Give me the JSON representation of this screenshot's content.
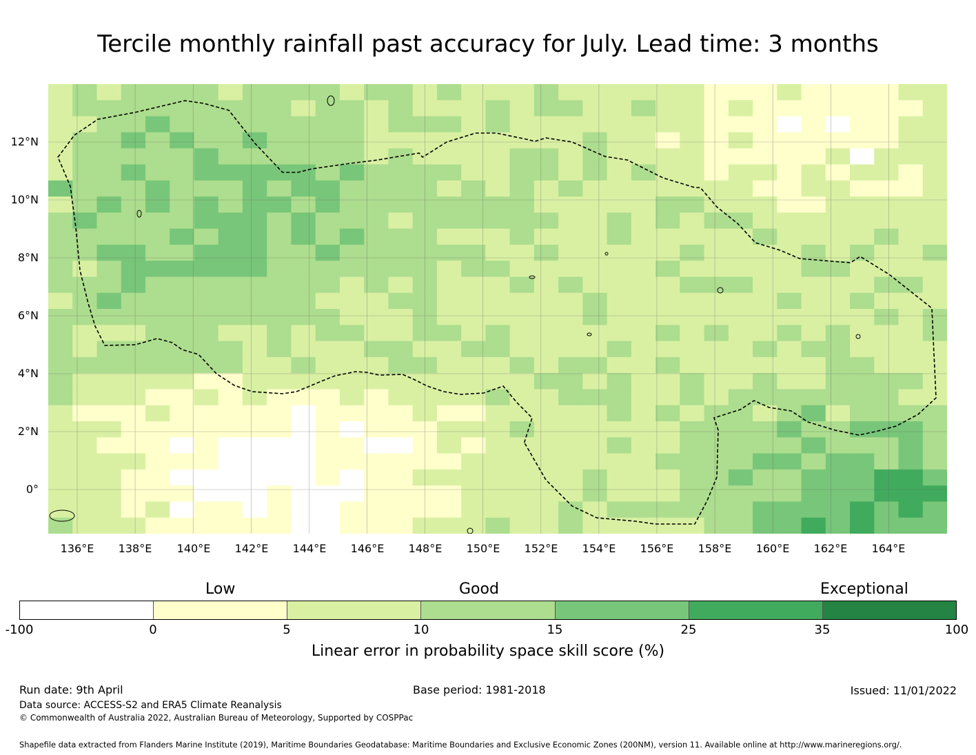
{
  "title": "Tercile monthly rainfall past accuracy for July. Lead time: 3 months",
  "map": {
    "lat_labels": [
      "12°N",
      "10°N",
      "8°N",
      "6°N",
      "4°N",
      "2°N",
      "0°"
    ],
    "lon_labels": [
      "136°E",
      "138°E",
      "140°E",
      "142°E",
      "144°E",
      "146°E",
      "148°E",
      "150°E",
      "152°E",
      "154°E",
      "156°E",
      "158°E",
      "160°E",
      "162°E",
      "164°E"
    ],
    "boundary_style": "dashed black line (EEZ boundary)",
    "gridlines": true
  },
  "legend": {
    "category_labels": {
      "low": "Low",
      "good": "Good",
      "exceptional": "Exceptional"
    },
    "ticks": [
      "-100",
      "0",
      "5",
      "10",
      "15",
      "25",
      "35",
      "100"
    ],
    "colors": [
      "#ffffff",
      "#ffffcc",
      "#d9f0a3",
      "#addd8e",
      "#78c679",
      "#41ab5d",
      "#238443"
    ],
    "title": "Linear error in probability space skill score (%)"
  },
  "footer": {
    "run_date": "Run date: 9th April",
    "base_period": "Base period: 1981-2018",
    "issued": "Issued: 11/01/2022",
    "data_source": "Data source: ACCESS-S2 and ERA5 Climate Reanalysis",
    "copyright": "© Commonwealth of Australia 2022, Australian Bureau of Meteorology, Supported by COSPPac",
    "shapefile": "Shapefile data extracted from Flanders Marine Institute (2019), Maritime Boundaries Geodatabase: Maritime Boundaries and Exclusive Economic Zones (200NM), version 11. Available online at http://www.marineregions.org/."
  }
}
